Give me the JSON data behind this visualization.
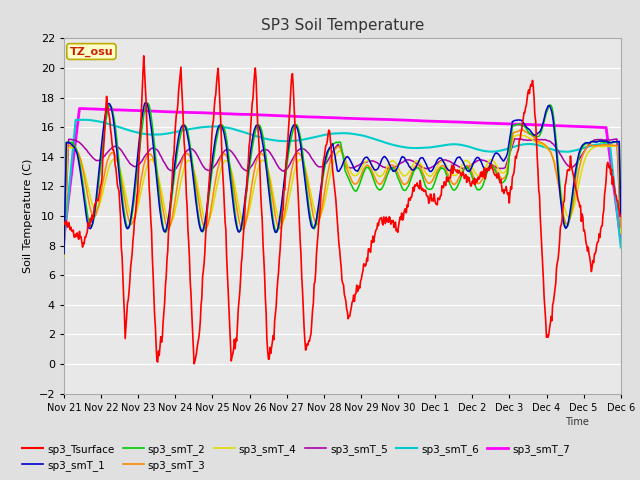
{
  "title": "SP3 Soil Temperature",
  "xlabel": "Time",
  "ylabel": "Soil Temperature (C)",
  "ylim": [
    -2,
    22
  ],
  "yticks": [
    -2,
    0,
    2,
    4,
    6,
    8,
    10,
    12,
    14,
    16,
    18,
    20,
    22
  ],
  "bg_color": "#e0e0e0",
  "plot_bg_color": "#e8e8e8",
  "grid_color": "#ffffff",
  "annotation_text": "TZ_osu",
  "annotation_bg": "#ffffcc",
  "annotation_border": "#bbaa00",
  "series": {
    "sp3_Tsurface": {
      "color": "#ff0000",
      "lw": 1.2
    },
    "sp3_smT_1": {
      "color": "#0000cc",
      "lw": 1.1
    },
    "sp3_smT_2": {
      "color": "#00cc00",
      "lw": 1.1
    },
    "sp3_smT_3": {
      "color": "#ff8800",
      "lw": 1.1
    },
    "sp3_smT_4": {
      "color": "#dddd00",
      "lw": 1.1
    },
    "sp3_smT_5": {
      "color": "#aa00aa",
      "lw": 1.1
    },
    "sp3_smT_6": {
      "color": "#00cccc",
      "lw": 1.5
    },
    "sp3_smT_7": {
      "color": "#ff00ff",
      "lw": 2.0
    }
  },
  "xtick_labels": [
    "Nov 21",
    "Nov 22",
    "Nov 23",
    "Nov 24",
    "Nov 25",
    "Nov 26",
    "Nov 27",
    "Nov 28",
    "Nov 29",
    "Nov 30",
    "Dec 1",
    "Dec 2",
    "Dec 3",
    "Dec 4",
    "Dec 5",
    "Dec 6"
  ],
  "n_points": 720
}
